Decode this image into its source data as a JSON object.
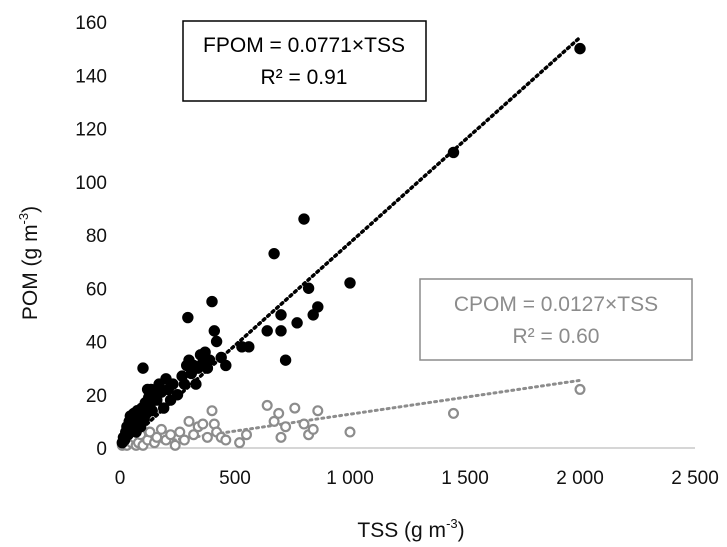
{
  "chart_data": {
    "type": "scatter",
    "xlabel": "TSS (g m",
    "xlabel_sup": "-3",
    "xlabel_end": ")",
    "ylabel": "POM (g m",
    "ylabel_sup": "-3",
    "ylabel_end": ")",
    "xlim": [
      0,
      2500
    ],
    "ylim": [
      0,
      160
    ],
    "x_ticks": [
      0,
      500,
      1000,
      1500,
      2000,
      2500
    ],
    "x_tick_labels": [
      "0",
      "500",
      "1 000",
      "1 500",
      "2 000",
      "2 500"
    ],
    "y_ticks": [
      0,
      20,
      40,
      60,
      80,
      100,
      120,
      140,
      160
    ],
    "y_tick_labels": [
      "0",
      "20",
      "40",
      "60",
      "80",
      "100",
      "120",
      "140",
      "160"
    ],
    "grid": false,
    "series": [
      {
        "name": "FPOM",
        "color": "#000000",
        "marker": "filled-circle",
        "trend": {
          "slope": 0.0771,
          "x_range": [
            0,
            2000
          ],
          "style": "dotted"
        },
        "annotation": {
          "line1": "FPOM = 0.0771×TSS",
          "line2": "R² = 0.91",
          "border": "#000000",
          "color": "#000000"
        },
        "points": [
          [
            10,
            2
          ],
          [
            15,
            4
          ],
          [
            20,
            3
          ],
          [
            25,
            6
          ],
          [
            30,
            8
          ],
          [
            35,
            5
          ],
          [
            40,
            10
          ],
          [
            45,
            12
          ],
          [
            50,
            7
          ],
          [
            55,
            9
          ],
          [
            60,
            13
          ],
          [
            65,
            11
          ],
          [
            70,
            6
          ],
          [
            75,
            14
          ],
          [
            80,
            10
          ],
          [
            85,
            12
          ],
          [
            90,
            8
          ],
          [
            95,
            15
          ],
          [
            100,
            30
          ],
          [
            105,
            11
          ],
          [
            110,
            17
          ],
          [
            115,
            13
          ],
          [
            120,
            22
          ],
          [
            125,
            19
          ],
          [
            130,
            16
          ],
          [
            135,
            22
          ],
          [
            140,
            14
          ],
          [
            150,
            20
          ],
          [
            160,
            18
          ],
          [
            170,
            24
          ],
          [
            180,
            21
          ],
          [
            190,
            15
          ],
          [
            200,
            26
          ],
          [
            210,
            22
          ],
          [
            220,
            18
          ],
          [
            230,
            24
          ],
          [
            250,
            20
          ],
          [
            270,
            27
          ],
          [
            280,
            24
          ],
          [
            290,
            31
          ],
          [
            295,
            49
          ],
          [
            300,
            33
          ],
          [
            310,
            28
          ],
          [
            320,
            31
          ],
          [
            330,
            24
          ],
          [
            340,
            30
          ],
          [
            350,
            35
          ],
          [
            360,
            32
          ],
          [
            370,
            36
          ],
          [
            380,
            30
          ],
          [
            390,
            33
          ],
          [
            400,
            55
          ],
          [
            410,
            44
          ],
          [
            420,
            40
          ],
          [
            440,
            34
          ],
          [
            460,
            31
          ],
          [
            530,
            38
          ],
          [
            560,
            38
          ],
          [
            640,
            44
          ],
          [
            670,
            73
          ],
          [
            700,
            50
          ],
          [
            700,
            44
          ],
          [
            720,
            33
          ],
          [
            770,
            47
          ],
          [
            800,
            86
          ],
          [
            820,
            60
          ],
          [
            840,
            50
          ],
          [
            860,
            53
          ],
          [
            1000,
            62
          ],
          [
            1450,
            111
          ],
          [
            2000,
            150
          ]
        ]
      },
      {
        "name": "CPOM",
        "color": "#8c8c8c",
        "marker": "open-circle",
        "trend": {
          "slope": 0.0127,
          "x_range": [
            0,
            2000
          ],
          "style": "dotted"
        },
        "annotation": {
          "line1": "CPOM = 0.0127×TSS",
          "line2": "R² = 0.60",
          "border": "#8c8c8c",
          "color": "#8c8c8c"
        },
        "points": [
          [
            10,
            1
          ],
          [
            20,
            2
          ],
          [
            30,
            1
          ],
          [
            40,
            3
          ],
          [
            50,
            2
          ],
          [
            60,
            4
          ],
          [
            70,
            1
          ],
          [
            80,
            2
          ],
          [
            90,
            5
          ],
          [
            100,
            1
          ],
          [
            110,
            12
          ],
          [
            120,
            3
          ],
          [
            130,
            6
          ],
          [
            150,
            2
          ],
          [
            160,
            4
          ],
          [
            180,
            7
          ],
          [
            200,
            3
          ],
          [
            220,
            5
          ],
          [
            240,
            1
          ],
          [
            260,
            6
          ],
          [
            280,
            3
          ],
          [
            300,
            10
          ],
          [
            320,
            5
          ],
          [
            340,
            8
          ],
          [
            360,
            9
          ],
          [
            380,
            4
          ],
          [
            400,
            14
          ],
          [
            410,
            9
          ],
          [
            420,
            6
          ],
          [
            440,
            4
          ],
          [
            460,
            3
          ],
          [
            520,
            2
          ],
          [
            550,
            5
          ],
          [
            640,
            16
          ],
          [
            670,
            10
          ],
          [
            690,
            13
          ],
          [
            700,
            4
          ],
          [
            720,
            8
          ],
          [
            760,
            15
          ],
          [
            800,
            9
          ],
          [
            820,
            5
          ],
          [
            840,
            7
          ],
          [
            860,
            14
          ],
          [
            1000,
            6
          ],
          [
            1450,
            13
          ],
          [
            2000,
            22
          ]
        ]
      }
    ]
  }
}
